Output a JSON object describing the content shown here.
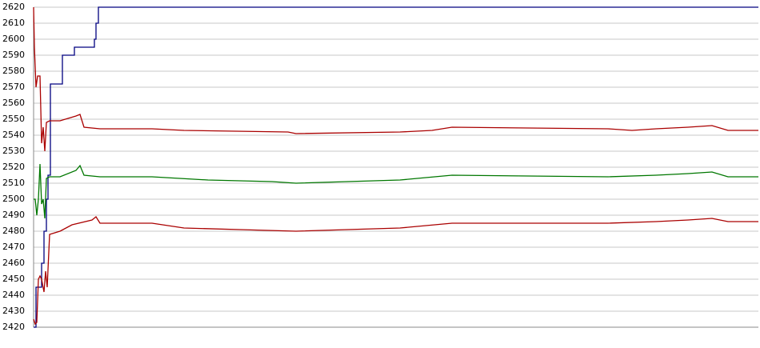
{
  "chart_data": {
    "type": "line",
    "xlim": [
      0,
      906
    ],
    "ylim": [
      2420,
      2620
    ],
    "yticks": [
      2420,
      2430,
      2440,
      2450,
      2460,
      2470,
      2480,
      2490,
      2500,
      2510,
      2520,
      2530,
      2540,
      2550,
      2560,
      2570,
      2580,
      2590,
      2600,
      2610,
      2620
    ],
    "grid": true,
    "series": [
      {
        "color": "#000080",
        "step": true,
        "x": [
          0,
          3,
          10,
          13,
          16,
          18,
          21,
          33,
          36,
          38,
          51,
          75,
          76,
          78,
          81,
          906
        ],
        "values": [
          2420,
          2445,
          2460,
          2480,
          2500,
          2515,
          2572,
          2572,
          2590,
          2590,
          2595,
          2595,
          2600,
          2610,
          2620,
          2620
        ]
      },
      {
        "color": "#aa0000",
        "x": [
          0,
          1,
          3,
          5,
          8,
          10,
          12,
          14,
          16,
          20,
          33,
          53,
          58,
          63,
          83,
          148,
          188,
          318,
          328,
          458,
          498,
          523,
          718,
          748,
          778,
          818,
          848,
          868,
          906
        ],
        "values": [
          2620,
          2595,
          2570,
          2577,
          2577,
          2535,
          2545,
          2530,
          2548,
          2549,
          2549,
          2552,
          2553,
          2545,
          2544,
          2544,
          2543,
          2542,
          2541,
          2542,
          2543,
          2545,
          2544,
          2543,
          2544,
          2545,
          2546,
          2543,
          2543
        ]
      },
      {
        "color": "#007700",
        "x": [
          0,
          2,
          4,
          6,
          8,
          10,
          12,
          14,
          16,
          20,
          33,
          53,
          58,
          63,
          83,
          148,
          218,
          298,
          328,
          458,
          523,
          718,
          778,
          818,
          848,
          868,
          906
        ],
        "values": [
          2500,
          2500,
          2490,
          2500,
          2522,
          2497,
          2500,
          2488,
          2513,
          2514,
          2514,
          2518,
          2521,
          2515,
          2514,
          2514,
          2512,
          2511,
          2510,
          2512,
          2515,
          2514,
          2515,
          2516,
          2517,
          2514,
          2514
        ]
      },
      {
        "color": "#aa0000",
        "x": [
          0,
          2,
          4,
          6,
          8,
          10,
          13,
          15,
          17,
          20,
          33,
          48,
          73,
          78,
          83,
          148,
          188,
          258,
          328,
          458,
          523,
          718,
          778,
          818,
          848,
          868,
          906
        ],
        "values": [
          2425,
          2422,
          2423,
          2450,
          2452,
          2450,
          2442,
          2455,
          2445,
          2478,
          2480,
          2484,
          2487,
          2489,
          2485,
          2485,
          2482,
          2481,
          2480,
          2482,
          2485,
          2485,
          2486,
          2487,
          2488,
          2486,
          2486
        ]
      }
    ]
  }
}
